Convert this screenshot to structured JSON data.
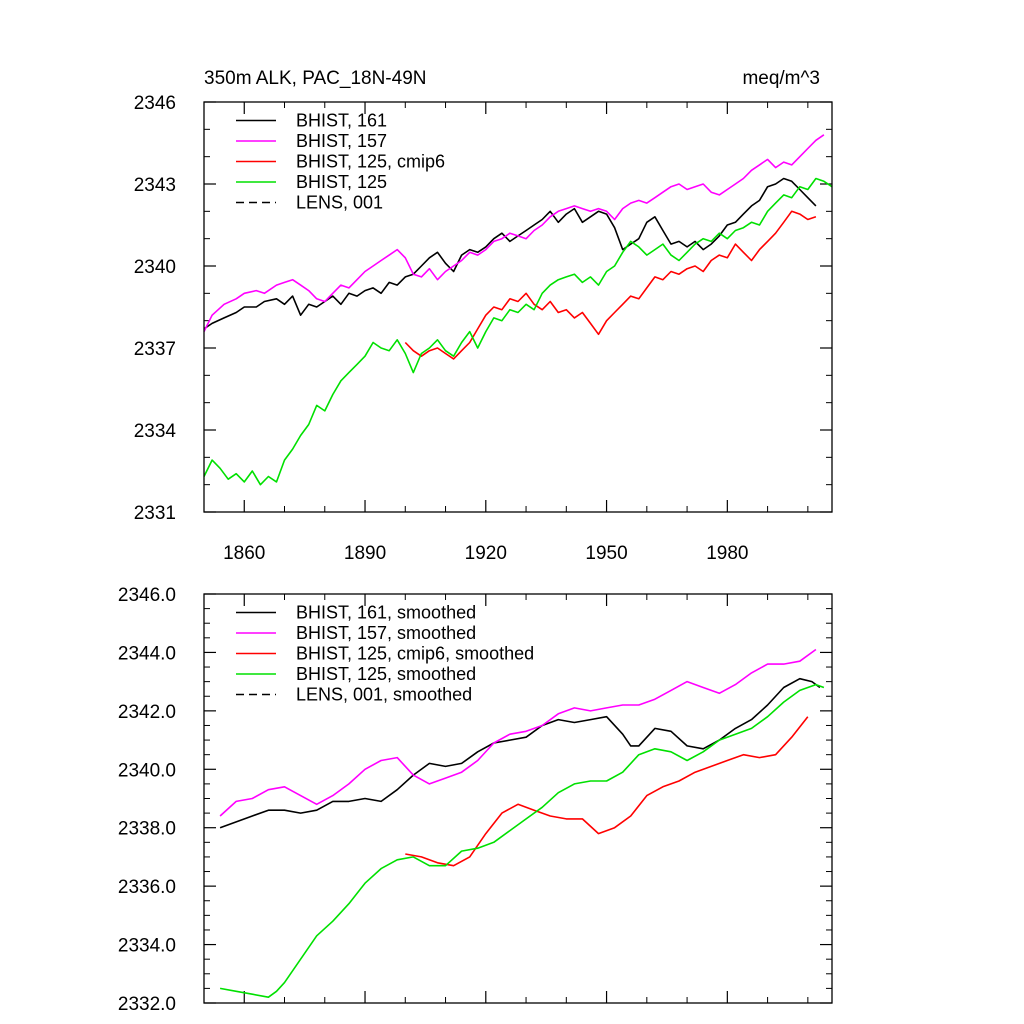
{
  "chart_data": [
    {
      "type": "line",
      "title_left": "350m ALK, PAC_18N-49N",
      "title_right": "meq/m^3",
      "xlabel": "",
      "ylabel": "",
      "xlim": [
        1850,
        2006
      ],
      "ylim": [
        2331,
        2346
      ],
      "y_ticks": [
        2331,
        2334,
        2337,
        2340,
        2343,
        2346
      ],
      "y_tick_labels": [
        "2331",
        "2334",
        "2337",
        "2340",
        "2343",
        "2346"
      ],
      "x_ticks": [
        1860,
        1890,
        1920,
        1950,
        1980
      ],
      "x_tick_labels": [
        "1860",
        "1890",
        "1920",
        "1950",
        "1980"
      ],
      "legend_position": "top-left",
      "series": [
        {
          "name": "BHIST, 161",
          "color": "#000000",
          "dash": "solid",
          "x": [
            1850,
            1852,
            1855,
            1858,
            1860,
            1863,
            1865,
            1868,
            1870,
            1872,
            1874,
            1876,
            1878,
            1880,
            1882,
            1884,
            1886,
            1888,
            1890,
            1892,
            1894,
            1896,
            1898,
            1900,
            1902,
            1904,
            1906,
            1908,
            1910,
            1912,
            1914,
            1916,
            1918,
            1920,
            1922,
            1924,
            1926,
            1928,
            1930,
            1932,
            1934,
            1936,
            1938,
            1940,
            1942,
            1944,
            1946,
            1948,
            1950,
            1952,
            1954,
            1956,
            1958,
            1960,
            1962,
            1964,
            1966,
            1968,
            1970,
            1972,
            1974,
            1976,
            1978,
            1980,
            1982,
            1984,
            1986,
            1988,
            1990,
            1992,
            1994,
            1996,
            1998,
            2000,
            2002
          ],
          "y": [
            2337.7,
            2337.9,
            2338.1,
            2338.3,
            2338.5,
            2338.5,
            2338.7,
            2338.8,
            2338.6,
            2338.9,
            2338.2,
            2338.6,
            2338.5,
            2338.7,
            2338.9,
            2338.6,
            2339.0,
            2338.9,
            2339.1,
            2339.2,
            2339.0,
            2339.4,
            2339.3,
            2339.6,
            2339.7,
            2340.0,
            2340.3,
            2340.5,
            2340.1,
            2339.8,
            2340.4,
            2340.6,
            2340.5,
            2340.7,
            2341.0,
            2341.2,
            2340.9,
            2341.1,
            2341.3,
            2341.5,
            2341.7,
            2342.0,
            2341.6,
            2341.9,
            2342.1,
            2341.6,
            2341.8,
            2342.0,
            2341.9,
            2341.4,
            2340.6,
            2340.8,
            2341.0,
            2341.6,
            2341.8,
            2341.3,
            2340.8,
            2340.9,
            2340.7,
            2340.9,
            2340.6,
            2340.8,
            2341.1,
            2341.5,
            2341.6,
            2341.9,
            2342.2,
            2342.4,
            2342.9,
            2343.0,
            2343.2,
            2343.1,
            2342.8,
            2342.5,
            2342.2
          ]
        },
        {
          "name": "BHIST, 157",
          "color": "#ff00ff",
          "dash": "solid",
          "x": [
            1850,
            1852,
            1855,
            1858,
            1860,
            1863,
            1865,
            1868,
            1870,
            1872,
            1874,
            1876,
            1878,
            1880,
            1882,
            1884,
            1886,
            1888,
            1890,
            1892,
            1894,
            1896,
            1898,
            1900,
            1902,
            1904,
            1906,
            1908,
            1910,
            1912,
            1914,
            1916,
            1918,
            1920,
            1922,
            1924,
            1926,
            1928,
            1930,
            1932,
            1934,
            1936,
            1938,
            1940,
            1942,
            1944,
            1946,
            1948,
            1950,
            1952,
            1954,
            1956,
            1958,
            1960,
            1962,
            1964,
            1966,
            1968,
            1970,
            1972,
            1974,
            1976,
            1978,
            1980,
            1982,
            1984,
            1986,
            1988,
            1990,
            1992,
            1994,
            1996,
            1998,
            2000,
            2002,
            2004
          ],
          "y": [
            2337.6,
            2338.2,
            2338.6,
            2338.8,
            2339.0,
            2339.1,
            2339.0,
            2339.3,
            2339.4,
            2339.5,
            2339.3,
            2339.1,
            2338.8,
            2338.7,
            2339.0,
            2339.3,
            2339.2,
            2339.5,
            2339.8,
            2340.0,
            2340.2,
            2340.4,
            2340.6,
            2340.3,
            2339.7,
            2339.6,
            2339.9,
            2339.5,
            2339.8,
            2340.0,
            2340.2,
            2340.5,
            2340.4,
            2340.6,
            2340.9,
            2341.0,
            2341.2,
            2341.1,
            2341.0,
            2341.3,
            2341.5,
            2341.8,
            2342.0,
            2342.1,
            2342.2,
            2342.1,
            2342.0,
            2342.1,
            2342.0,
            2341.7,
            2342.1,
            2342.3,
            2342.4,
            2342.3,
            2342.5,
            2342.7,
            2342.9,
            2343.0,
            2342.8,
            2342.9,
            2343.0,
            2342.7,
            2342.6,
            2342.8,
            2343.0,
            2343.2,
            2343.5,
            2343.7,
            2343.9,
            2343.6,
            2343.8,
            2343.7,
            2344.0,
            2344.3,
            2344.6,
            2344.8
          ]
        },
        {
          "name": "BHIST, 125, cmip6",
          "color": "#ff0000",
          "dash": "solid",
          "x": [
            1900,
            1902,
            1904,
            1906,
            1908,
            1910,
            1912,
            1914,
            1916,
            1918,
            1920,
            1922,
            1924,
            1926,
            1928,
            1930,
            1932,
            1934,
            1936,
            1938,
            1940,
            1942,
            1944,
            1946,
            1948,
            1950,
            1952,
            1954,
            1956,
            1958,
            1960,
            1962,
            1964,
            1966,
            1968,
            1970,
            1972,
            1974,
            1976,
            1978,
            1980,
            1982,
            1984,
            1986,
            1988,
            1990,
            1992,
            1994,
            1996,
            1998,
            2000,
            2002
          ],
          "y": [
            2337.2,
            2336.9,
            2336.7,
            2336.9,
            2337.0,
            2336.8,
            2336.6,
            2336.9,
            2337.2,
            2337.7,
            2338.2,
            2338.5,
            2338.4,
            2338.8,
            2338.7,
            2339.0,
            2338.6,
            2338.4,
            2338.7,
            2338.3,
            2338.4,
            2338.1,
            2338.3,
            2337.9,
            2337.5,
            2338.0,
            2338.3,
            2338.6,
            2338.9,
            2338.8,
            2339.2,
            2339.6,
            2339.5,
            2339.8,
            2339.7,
            2339.9,
            2340.0,
            2339.8,
            2340.2,
            2340.4,
            2340.3,
            2340.8,
            2340.5,
            2340.2,
            2340.6,
            2340.9,
            2341.2,
            2341.6,
            2342.0,
            2341.9,
            2341.7,
            2341.8
          ]
        },
        {
          "name": "BHIST, 125",
          "color": "#00e000",
          "dash": "solid",
          "x": [
            1850,
            1852,
            1854,
            1856,
            1858,
            1860,
            1862,
            1864,
            1866,
            1868,
            1870,
            1872,
            1874,
            1876,
            1878,
            1880,
            1882,
            1884,
            1886,
            1888,
            1890,
            1892,
            1894,
            1896,
            1898,
            1900,
            1902,
            1904,
            1906,
            1908,
            1910,
            1912,
            1914,
            1916,
            1918,
            1920,
            1922,
            1924,
            1926,
            1928,
            1930,
            1932,
            1934,
            1936,
            1938,
            1940,
            1942,
            1944,
            1946,
            1948,
            1950,
            1952,
            1954,
            1956,
            1958,
            1960,
            1962,
            1964,
            1966,
            1968,
            1970,
            1972,
            1974,
            1976,
            1978,
            1980,
            1982,
            1984,
            1986,
            1988,
            1990,
            1992,
            1994,
            1996,
            1998,
            2000,
            2002,
            2004,
            2006
          ],
          "y": [
            2332.3,
            2332.9,
            2332.6,
            2332.2,
            2332.4,
            2332.1,
            2332.5,
            2332.0,
            2332.3,
            2332.1,
            2332.9,
            2333.3,
            2333.8,
            2334.2,
            2334.9,
            2334.7,
            2335.3,
            2335.8,
            2336.1,
            2336.4,
            2336.7,
            2337.2,
            2337.0,
            2336.9,
            2337.3,
            2336.8,
            2336.1,
            2336.8,
            2337.0,
            2337.3,
            2336.9,
            2336.7,
            2337.2,
            2337.6,
            2337.0,
            2337.6,
            2338.1,
            2338.0,
            2338.4,
            2338.3,
            2338.6,
            2338.4,
            2339.0,
            2339.3,
            2339.5,
            2339.6,
            2339.7,
            2339.4,
            2339.6,
            2339.3,
            2339.8,
            2340.0,
            2340.5,
            2340.9,
            2340.7,
            2340.4,
            2340.6,
            2340.8,
            2340.4,
            2340.2,
            2340.5,
            2340.8,
            2341.0,
            2340.9,
            2341.2,
            2341.0,
            2341.3,
            2341.4,
            2341.6,
            2341.5,
            2342.0,
            2342.3,
            2342.6,
            2342.5,
            2342.9,
            2342.8,
            2343.2,
            2343.1,
            2342.9
          ]
        },
        {
          "name": "LENS, 001",
          "color": "#000000",
          "dash": "dashed",
          "x": [],
          "y": []
        }
      ]
    },
    {
      "type": "line",
      "title_left": "",
      "title_right": "",
      "xlabel": "",
      "ylabel": "",
      "xlim": [
        1850,
        2006
      ],
      "ylim": [
        2332.0,
        2346.0
      ],
      "y_ticks": [
        2332,
        2334,
        2336,
        2338,
        2340,
        2342,
        2344,
        2346
      ],
      "y_tick_labels": [
        "2332.0",
        "2334.0",
        "2336.0",
        "2338.0",
        "2340.0",
        "2342.0",
        "2344.0",
        "2346.0"
      ],
      "x_ticks": [
        1860,
        1890,
        1920,
        1950,
        1980
      ],
      "x_tick_labels": [],
      "legend_position": "top-left",
      "series": [
        {
          "name": "BHIST, 161, smoothed",
          "color": "#000000",
          "dash": "solid",
          "x": [
            1854,
            1858,
            1862,
            1866,
            1870,
            1874,
            1878,
            1882,
            1886,
            1890,
            1894,
            1898,
            1902,
            1906,
            1910,
            1914,
            1918,
            1922,
            1926,
            1930,
            1934,
            1938,
            1942,
            1946,
            1950,
            1954,
            1956,
            1958,
            1962,
            1966,
            1970,
            1974,
            1978,
            1982,
            1986,
            1990,
            1994,
            1998,
            2001,
            2003
          ],
          "y": [
            2338.0,
            2338.2,
            2338.4,
            2338.6,
            2338.6,
            2338.5,
            2338.6,
            2338.9,
            2338.9,
            2339.0,
            2338.9,
            2339.3,
            2339.8,
            2340.2,
            2340.1,
            2340.2,
            2340.6,
            2340.9,
            2341.0,
            2341.1,
            2341.5,
            2341.7,
            2341.6,
            2341.7,
            2341.8,
            2341.2,
            2340.8,
            2340.8,
            2341.4,
            2341.3,
            2340.8,
            2340.7,
            2341.0,
            2341.4,
            2341.7,
            2342.2,
            2342.8,
            2343.1,
            2343.0,
            2342.8
          ]
        },
        {
          "name": "BHIST, 157, smoothed",
          "color": "#ff00ff",
          "dash": "solid",
          "x": [
            1854,
            1858,
            1862,
            1866,
            1870,
            1874,
            1878,
            1882,
            1886,
            1890,
            1894,
            1898,
            1902,
            1906,
            1910,
            1914,
            1918,
            1922,
            1926,
            1930,
            1934,
            1938,
            1942,
            1946,
            1950,
            1954,
            1958,
            1962,
            1966,
            1970,
            1974,
            1978,
            1982,
            1986,
            1990,
            1994,
            1998,
            2002
          ],
          "y": [
            2338.4,
            2338.9,
            2339.0,
            2339.3,
            2339.4,
            2339.1,
            2338.8,
            2339.1,
            2339.5,
            2340.0,
            2340.3,
            2340.4,
            2339.8,
            2339.5,
            2339.7,
            2339.9,
            2340.3,
            2340.9,
            2341.2,
            2341.3,
            2341.5,
            2341.9,
            2342.1,
            2342.0,
            2342.1,
            2342.2,
            2342.2,
            2342.4,
            2342.7,
            2343.0,
            2342.8,
            2342.6,
            2342.9,
            2343.3,
            2343.6,
            2343.6,
            2343.7,
            2344.1
          ]
        },
        {
          "name": "BHIST, 125, cmip6, smoothed",
          "color": "#ff0000",
          "dash": "solid",
          "x": [
            1900,
            1904,
            1908,
            1912,
            1916,
            1920,
            1924,
            1928,
            1932,
            1936,
            1940,
            1944,
            1948,
            1952,
            1956,
            1960,
            1964,
            1968,
            1972,
            1976,
            1980,
            1984,
            1988,
            1992,
            1996,
            2000
          ],
          "y": [
            2337.1,
            2337.0,
            2336.8,
            2336.7,
            2337.0,
            2337.8,
            2338.5,
            2338.8,
            2338.6,
            2338.4,
            2338.3,
            2338.3,
            2337.8,
            2338.0,
            2338.4,
            2339.1,
            2339.4,
            2339.6,
            2339.9,
            2340.1,
            2340.3,
            2340.5,
            2340.4,
            2340.5,
            2341.1,
            2341.8
          ]
        },
        {
          "name": "BHIST, 125, smoothed",
          "color": "#00e000",
          "dash": "solid",
          "x": [
            1854,
            1858,
            1862,
            1866,
            1868,
            1870,
            1874,
            1878,
            1882,
            1886,
            1890,
            1894,
            1898,
            1902,
            1906,
            1910,
            1914,
            1918,
            1922,
            1926,
            1930,
            1934,
            1938,
            1942,
            1946,
            1950,
            1954,
            1958,
            1962,
            1966,
            1970,
            1974,
            1978,
            1982,
            1986,
            1990,
            1994,
            1998,
            2002,
            2004
          ],
          "y": [
            2332.5,
            2332.4,
            2332.3,
            2332.2,
            2332.4,
            2332.7,
            2333.5,
            2334.3,
            2334.8,
            2335.4,
            2336.1,
            2336.6,
            2336.9,
            2337.0,
            2336.7,
            2336.7,
            2337.2,
            2337.3,
            2337.5,
            2337.9,
            2338.3,
            2338.7,
            2339.2,
            2339.5,
            2339.6,
            2339.6,
            2339.9,
            2340.5,
            2340.7,
            2340.6,
            2340.3,
            2340.6,
            2341.0,
            2341.2,
            2341.4,
            2341.8,
            2342.3,
            2342.7,
            2342.9,
            2342.8
          ]
        },
        {
          "name": "LENS, 001, smoothed",
          "color": "#000000",
          "dash": "dashed",
          "x": [],
          "y": []
        }
      ]
    }
  ]
}
